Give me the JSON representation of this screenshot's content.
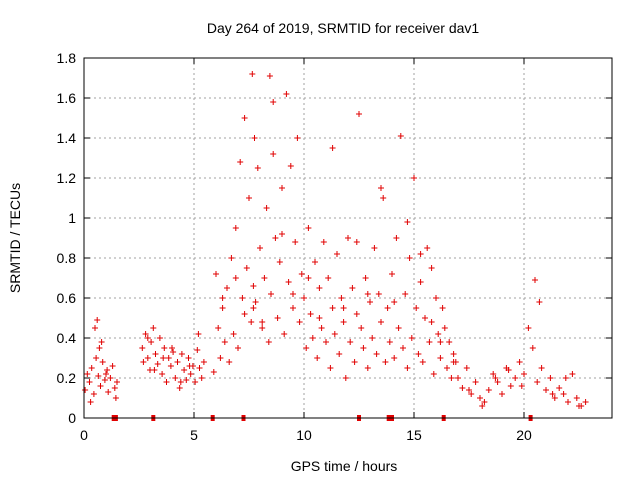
{
  "chart_data": {
    "type": "scatter",
    "title": "Day 264 of 2019, SRMTID for receiver dav1",
    "xlabel": "GPS time / hours",
    "ylabel": "SRMTID / TECUs",
    "xlim": [
      0,
      24
    ],
    "ylim": [
      0,
      1.8
    ],
    "xticks": [
      0,
      5,
      10,
      15,
      20
    ],
    "xtick_labels": [
      "0",
      "5",
      "10",
      "15",
      "20"
    ],
    "yticks": [
      0,
      0.2,
      0.4,
      0.6,
      0.8,
      1,
      1.2,
      1.4,
      1.6,
      1.8
    ],
    "ytick_labels": [
      "0",
      "0.2",
      "0.4",
      "0.6",
      "0.8",
      "1",
      "1.2",
      "1.4",
      "1.6",
      "1.8"
    ],
    "grid": true,
    "marker": "plus",
    "color": "#e00000",
    "series": [
      {
        "name": "dav1",
        "x": [
          0.05,
          0.15,
          0.25,
          0.35,
          0.45,
          0.55,
          0.6,
          0.65,
          0.7,
          0.75,
          0.85,
          0.95,
          1.05,
          1.1,
          1.2,
          1.3,
          1.4,
          1.45,
          1.5,
          2.65,
          2.7,
          2.8,
          2.9,
          3.0,
          3.05,
          3.15,
          3.25,
          3.35,
          3.45,
          3.55,
          3.65,
          3.75,
          3.85,
          3.95,
          4.05,
          4.15,
          4.25,
          4.35,
          4.45,
          4.55,
          4.65,
          4.75,
          4.85,
          4.95,
          5.05,
          5.15,
          5.25,
          5.35,
          5.45,
          5.9,
          6.0,
          6.1,
          6.2,
          6.3,
          6.4,
          6.5,
          6.6,
          6.7,
          6.8,
          6.9,
          7.0,
          7.1,
          7.2,
          7.3,
          7.4,
          7.5,
          7.6,
          7.65,
          7.7,
          7.75,
          7.8,
          7.9,
          8.0,
          8.1,
          8.2,
          8.3,
          8.4,
          8.45,
          8.5,
          8.6,
          8.7,
          8.8,
          8.9,
          9.0,
          9.1,
          9.2,
          9.3,
          9.4,
          9.5,
          9.6,
          9.7,
          9.8,
          9.9,
          10.0,
          10.1,
          10.2,
          10.3,
          10.4,
          10.5,
          10.6,
          10.7,
          10.8,
          10.9,
          11.0,
          11.1,
          11.2,
          11.3,
          11.4,
          11.5,
          11.6,
          11.7,
          11.8,
          11.9,
          12.0,
          12.1,
          12.2,
          12.3,
          12.4,
          12.5,
          12.6,
          12.7,
          12.8,
          12.9,
          13.0,
          13.1,
          13.2,
          13.3,
          13.4,
          13.5,
          13.6,
          13.7,
          13.8,
          13.9,
          14.0,
          14.1,
          14.2,
          14.3,
          14.4,
          14.5,
          14.6,
          14.7,
          14.8,
          14.9,
          15.0,
          15.1,
          15.2,
          15.3,
          15.4,
          15.5,
          15.6,
          15.7,
          15.8,
          15.9,
          16.0,
          16.1,
          16.2,
          16.3,
          16.4,
          16.5,
          16.6,
          16.7,
          16.8,
          16.9,
          17.0,
          17.2,
          17.4,
          17.6,
          17.8,
          18.0,
          18.2,
          18.4,
          18.6,
          18.8,
          19.0,
          19.2,
          19.4,
          19.6,
          19.8,
          20.0,
          20.2,
          20.4,
          20.5,
          20.6,
          20.8,
          21.0,
          21.2,
          21.4,
          21.6,
          21.8,
          22.0,
          22.2,
          22.4,
          22.6,
          22.8,
          0.3,
          0.5,
          0.8,
          1.0,
          2.9,
          3.2,
          3.6,
          4.0,
          4.4,
          4.8,
          5.2,
          6.3,
          6.9,
          7.3,
          7.7,
          8.1,
          8.6,
          9.0,
          9.5,
          10.2,
          10.7,
          11.3,
          11.8,
          12.4,
          12.9,
          13.5,
          14.1,
          14.7,
          15.3,
          15.8,
          16.2,
          16.8,
          17.5,
          18.1,
          18.7,
          19.3,
          19.9,
          20.7,
          21.3,
          21.9,
          22.5
        ],
        "y": [
          0.14,
          0.22,
          0.18,
          0.25,
          0.12,
          0.3,
          0.49,
          0.21,
          0.35,
          0.16,
          0.28,
          0.19,
          0.24,
          0.13,
          0.2,
          0.26,
          0.15,
          0.1,
          0.18,
          0.35,
          0.28,
          0.42,
          0.3,
          0.24,
          0.38,
          0.45,
          0.32,
          0.27,
          0.4,
          0.22,
          0.35,
          0.18,
          0.3,
          0.26,
          0.33,
          0.2,
          0.28,
          0.15,
          0.32,
          0.24,
          0.19,
          0.3,
          0.22,
          0.26,
          0.18,
          0.34,
          0.25,
          0.2,
          0.28,
          0.23,
          0.72,
          0.45,
          0.3,
          0.55,
          0.38,
          0.65,
          0.28,
          0.8,
          0.42,
          0.95,
          0.35,
          1.28,
          0.6,
          0.52,
          0.75,
          1.1,
          0.48,
          1.72,
          0.66,
          1.4,
          0.58,
          1.25,
          0.85,
          0.45,
          0.7,
          1.05,
          0.38,
          1.71,
          0.62,
          1.58,
          0.9,
          0.5,
          0.78,
          1.15,
          0.42,
          1.62,
          0.68,
          1.26,
          0.55,
          0.88,
          1.4,
          0.48,
          0.72,
          0.6,
          0.35,
          0.95,
          0.52,
          0.4,
          0.78,
          0.3,
          0.65,
          0.45,
          0.88,
          0.38,
          0.7,
          0.25,
          0.55,
          0.42,
          0.82,
          0.32,
          0.6,
          0.48,
          0.2,
          0.9,
          0.38,
          0.65,
          0.28,
          0.52,
          1.52,
          0.45,
          0.35,
          0.7,
          0.25,
          0.58,
          0.4,
          0.85,
          0.32,
          0.62,
          0.48,
          1.1,
          0.28,
          0.55,
          0.38,
          0.72,
          0.3,
          0.9,
          0.45,
          1.41,
          0.35,
          0.62,
          0.25,
          0.8,
          0.4,
          1.2,
          0.55,
          0.32,
          0.68,
          0.28,
          0.5,
          0.85,
          0.38,
          0.75,
          0.22,
          0.6,
          0.42,
          0.3,
          0.55,
          0.45,
          0.25,
          0.38,
          0.2,
          0.32,
          0.28,
          0.2,
          0.15,
          0.25,
          0.12,
          0.18,
          0.1,
          0.08,
          0.14,
          0.22,
          0.18,
          0.12,
          0.25,
          0.16,
          0.2,
          0.28,
          0.22,
          0.45,
          0.35,
          0.69,
          0.18,
          0.25,
          0.14,
          0.2,
          0.1,
          0.15,
          0.12,
          0.08,
          0.22,
          0.1,
          0.06,
          0.08,
          0.08,
          0.45,
          0.38,
          0.22,
          0.4,
          0.24,
          0.3,
          0.35,
          0.18,
          0.26,
          0.42,
          0.6,
          0.7,
          1.5,
          0.55,
          0.48,
          1.32,
          0.92,
          0.62,
          0.7,
          0.5,
          1.35,
          0.55,
          0.88,
          0.62,
          1.15,
          0.58,
          0.98,
          0.82,
          0.48,
          0.38,
          0.28,
          0.14,
          0.06,
          0.2,
          0.24,
          0.16,
          0.58,
          0.12,
          0.2,
          0.06
        ]
      }
    ],
    "gap_markers_x": [
      1.35,
      1.45,
      3.15,
      5.85,
      7.25,
      12.5,
      13.85,
      14.0,
      16.35,
      20.3
    ]
  }
}
